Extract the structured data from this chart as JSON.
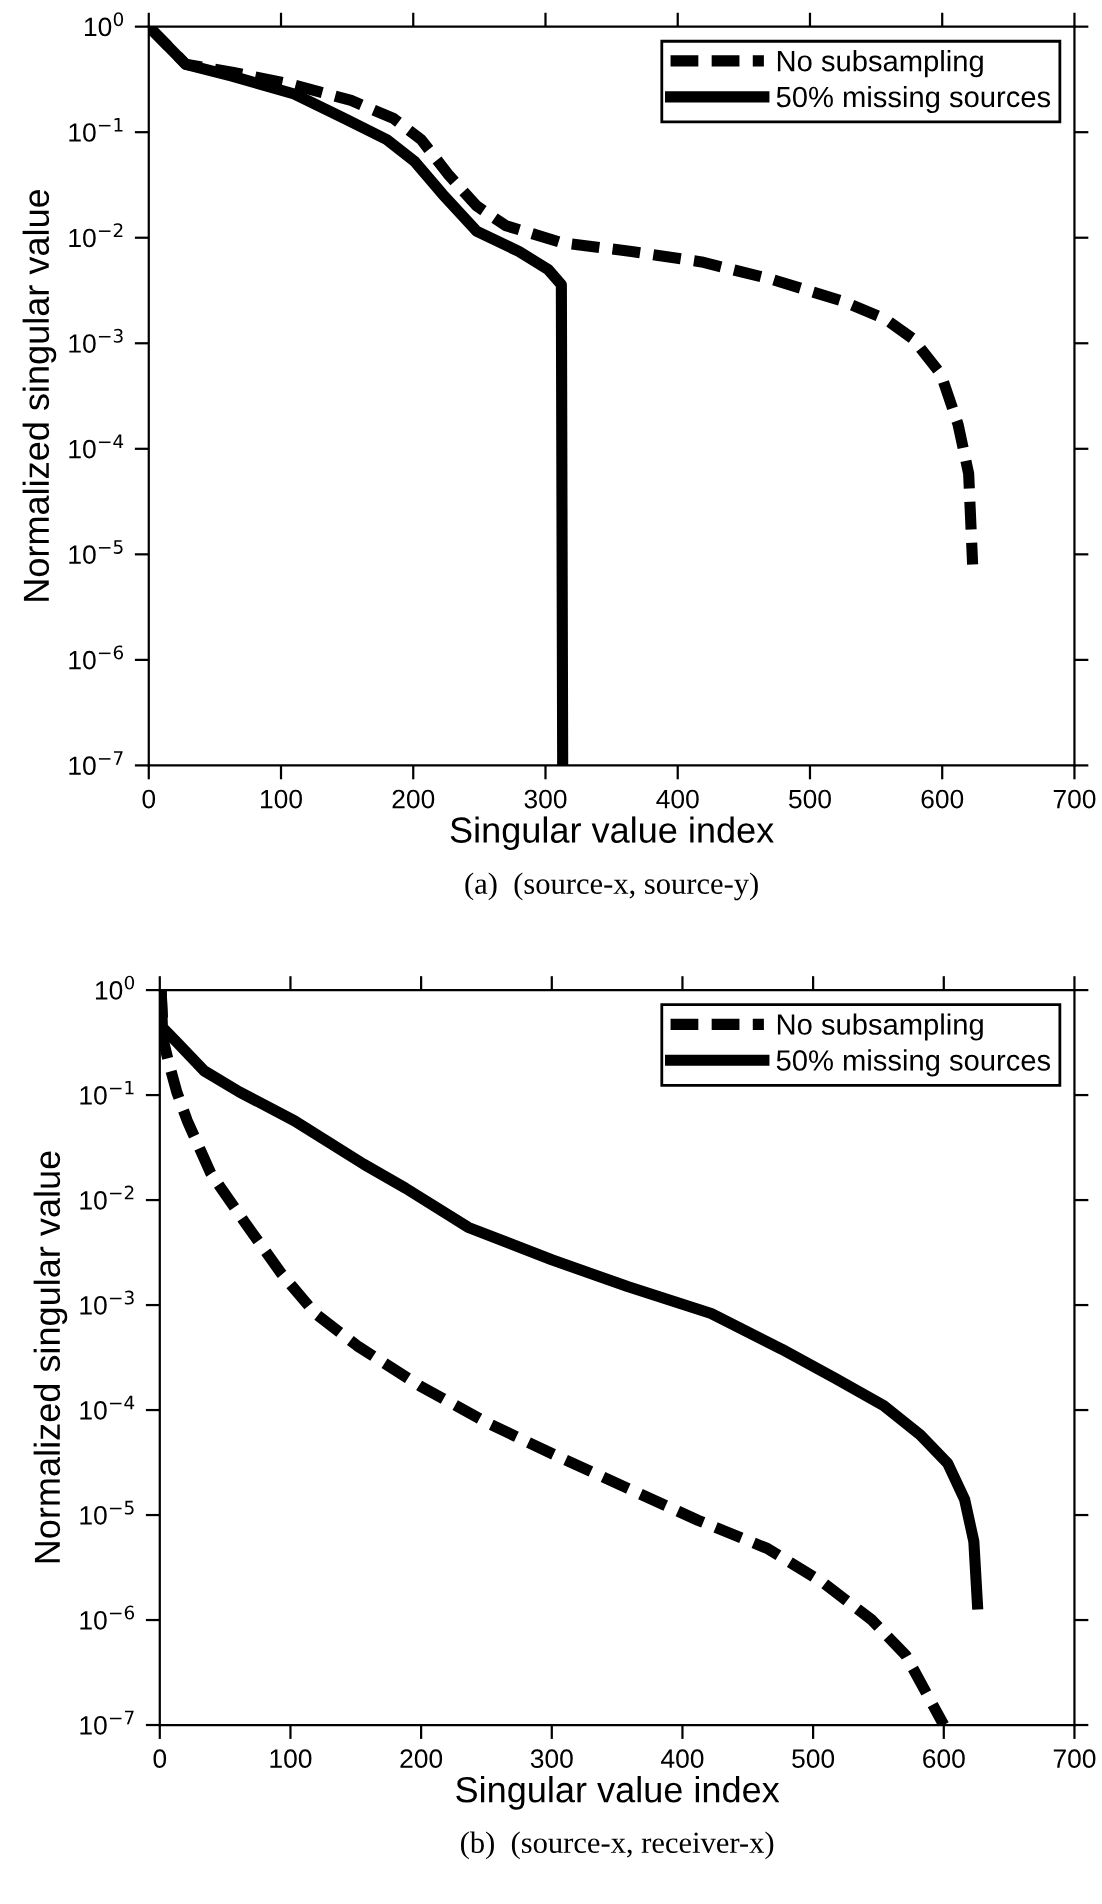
{
  "chart_data": [
    {
      "type": "line",
      "xlabel": "Singular value index",
      "ylabel": "Normalized singular value",
      "annotations": [
        "(a)  (source-x, source-y)"
      ],
      "log": "y",
      "legend": "top right",
      "grid": false,
      "xlim": [
        0,
        700
      ],
      "xticks": [
        0,
        100,
        200,
        300,
        400,
        500,
        600,
        700
      ],
      "ylim": [
        1e-07,
        1
      ],
      "yticks": [
        {
          "value": 1e-07,
          "label": "10$^{−7}$"
        },
        {
          "value": 1e-06,
          "label": "10$^{−6}$"
        },
        {
          "value": 1e-05,
          "label": "10$^{−5}$"
        },
        {
          "value": 0.0001,
          "label": "10$^{−4}$"
        },
        {
          "value": 0.001,
          "label": "10$^{−3}$"
        },
        {
          "value": 0.01,
          "label": "10$^{−2}$"
        },
        {
          "value": 0.1,
          "label": "10$^{−1}$"
        },
        {
          "value": 1,
          "label": "10$^{0}$"
        }
      ],
      "series": [
        {
          "name": "No subsampling",
          "color": "#000000",
          "line_style": "dashed",
          "x": [
            0,
            28,
            63,
            110,
            153,
            185,
            206,
            227,
            248,
            270,
            312,
            365,
            418,
            472,
            525,
            557,
            578,
            599,
            612,
            620,
            623
          ],
          "values": [
            1.0,
            0.44,
            0.37,
            0.28,
            0.2,
            0.135,
            0.085,
            0.039,
            0.02,
            0.013,
            0.009,
            0.0074,
            0.0059,
            0.004,
            0.0025,
            0.0017,
            0.0011,
            0.00051,
            0.00017,
            5.8e-05,
            8e-06
          ]
        },
        {
          "name": "50% missing sources",
          "color": "#000000",
          "line_style": "solid",
          "x": [
            0,
            28,
            63,
            110,
            148,
            180,
            201,
            222,
            248,
            280,
            302,
            312,
            313
          ],
          "values": [
            1.0,
            0.44,
            0.34,
            0.23,
            0.135,
            0.085,
            0.053,
            0.026,
            0.0115,
            0.0074,
            0.005,
            0.0036,
            1e-07
          ]
        }
      ]
    },
    {
      "type": "line",
      "xlabel": "Singular value index",
      "ylabel": "Normalized singular value",
      "annotations": [
        "(b)  (source-x, receiver-x)"
      ],
      "log": "y",
      "legend": "top right",
      "grid": false,
      "xlim": [
        0,
        700
      ],
      "xticks": [
        0,
        100,
        200,
        300,
        400,
        500,
        600,
        700
      ],
      "ylim": [
        1e-07,
        1
      ],
      "yticks": [
        {
          "value": 1e-07,
          "label": "10$^{−7}$"
        },
        {
          "value": 1e-06,
          "label": "10$^{−6}$"
        },
        {
          "value": 1e-05,
          "label": "10$^{−5}$"
        },
        {
          "value": 0.0001,
          "label": "10$^{−4}$"
        },
        {
          "value": 0.001,
          "label": "10$^{−3}$"
        },
        {
          "value": 0.01,
          "label": "10$^{−2}$"
        },
        {
          "value": 0.1,
          "label": "10$^{−1}$"
        },
        {
          "value": 1,
          "label": "10$^{0}$"
        }
      ],
      "series": [
        {
          "name": "No subsampling",
          "color": "#000000",
          "line_style": "dashed",
          "x": [
            1,
            3,
            7,
            13,
            21,
            39,
            66,
            93,
            119,
            151,
            199,
            252,
            305,
            358,
            412,
            465,
            507,
            545,
            571,
            600
          ],
          "values": [
            1.0,
            0.32,
            0.2,
            0.107,
            0.057,
            0.018,
            0.0059,
            0.002,
            0.00083,
            0.00041,
            0.00017,
            7.4e-05,
            3.6e-05,
            1.8e-05,
            8.9e-06,
            4.8e-06,
            2.3e-06,
            1e-06,
            4.6e-07,
            1e-07
          ]
        },
        {
          "name": "50% missing sources",
          "color": "#000000",
          "line_style": "solid",
          "x": [
            1,
            2,
            13,
            34,
            61,
            103,
            156,
            188,
            236,
            300,
            358,
            422,
            476,
            517,
            554,
            582,
            603,
            616,
            623,
            626
          ],
          "values": [
            1.0,
            0.44,
            0.32,
            0.17,
            0.107,
            0.057,
            0.022,
            0.013,
            0.0055,
            0.0027,
            0.0015,
            0.00083,
            0.00038,
            0.0002,
            0.00011,
            5.8e-05,
            3.1e-05,
            1.4e-05,
            5.6e-06,
            1.26e-06
          ]
        }
      ]
    }
  ]
}
